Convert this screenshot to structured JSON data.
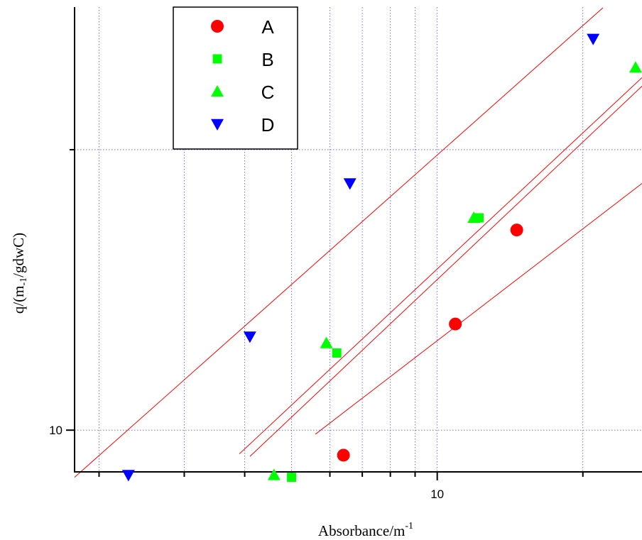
{
  "chart_data": {
    "type": "scatter",
    "xscale": "log",
    "yscale": "log",
    "xlim": [
      1.78,
      26.5
    ],
    "ylim": [
      9.02,
      28.45
    ],
    "x_major_ticks": [
      10
    ],
    "x_tick_labels": [
      "10"
    ],
    "y_major_ticks": [
      10
    ],
    "y_tick_labels": [
      "10"
    ],
    "grid": true,
    "xlabel": "Absorbance/m",
    "xlabel_superscript": "-1",
    "ylabel": "q/(m",
    "ylabel_subscript": "-1",
    "ylabel_suffix": "/gdwC)",
    "legend_position": "top-left",
    "series": [
      {
        "name": "A",
        "marker": "circle",
        "color": "#ff0000",
        "x": [
          6.4,
          10.9,
          14.6
        ],
        "y": [
          9.4,
          13.0,
          16.4
        ]
      },
      {
        "name": "B",
        "marker": "square",
        "color": "#00ff00",
        "x": [
          5.0,
          6.2,
          12.2
        ],
        "y": [
          8.9,
          12.1,
          16.9
        ]
      },
      {
        "name": "C",
        "marker": "triangle-up",
        "color": "#00ff00",
        "x": [
          4.6,
          5.9,
          11.9,
          25.7
        ],
        "y": [
          8.95,
          12.4,
          16.9,
          24.5
        ]
      },
      {
        "name": "D",
        "marker": "triangle-down",
        "color": "#0000ff",
        "x": [
          2.3,
          4.1,
          6.6,
          21.0
        ],
        "y": [
          8.95,
          12.6,
          18.4,
          26.3
        ]
      }
    ],
    "fit_lines": [
      {
        "color": "#ff0000",
        "x": [
          1.78,
          22.0
        ],
        "y": [
          8.9,
          28.4
        ]
      },
      {
        "color": "#ff0000",
        "x": [
          3.9,
          26.5
        ],
        "y": [
          9.43,
          23.9
        ]
      },
      {
        "color": "#ff0000",
        "x": [
          4.1,
          26.5
        ],
        "y": [
          9.37,
          23.4
        ]
      },
      {
        "color": "#ff0000",
        "x": [
          5.6,
          26.5
        ],
        "y": [
          9.9,
          18.4
        ]
      }
    ]
  }
}
